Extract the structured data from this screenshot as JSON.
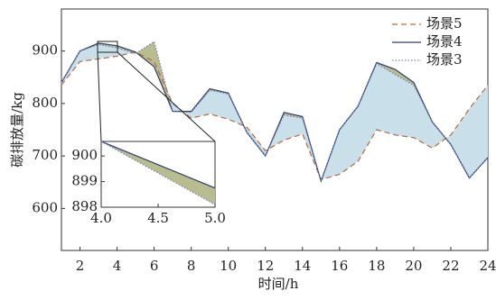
{
  "chart_data": [
    {
      "type": "line",
      "xlabel": "时间/h",
      "ylabel": "碳排放量/kg",
      "x": [
        1,
        2,
        3,
        4,
        5,
        6,
        7,
        8,
        9,
        10,
        11,
        12,
        13,
        14,
        15,
        16,
        17,
        18,
        19,
        20,
        21,
        22,
        23,
        24
      ],
      "xlim": [
        1,
        24
      ],
      "xticks": [
        2,
        4,
        6,
        8,
        10,
        12,
        14,
        16,
        18,
        20,
        22,
        24
      ],
      "ylim": [
        520,
        980
      ],
      "yticks": [
        600,
        700,
        800,
        900
      ],
      "legend": "upper right",
      "series": [
        {
          "name": "场景5",
          "color": "#b8683a",
          "style": "dashed",
          "values": [
            835,
            880,
            885,
            890,
            898,
            880,
            800,
            772,
            780,
            770,
            755,
            710,
            730,
            742,
            655,
            665,
            690,
            750,
            740,
            735,
            715,
            740,
            790,
            835
          ]
        },
        {
          "name": "场景4",
          "color": "#2b3d6b",
          "style": "solid",
          "values": [
            840,
            900,
            915,
            910,
            898,
            870,
            785,
            785,
            828,
            820,
            745,
            700,
            783,
            775,
            652,
            750,
            795,
            878,
            865,
            840,
            765,
            722,
            658,
            697
          ]
        },
        {
          "name": "场景3",
          "color": "#7a7fb8",
          "style": "dotted",
          "values": [
            840,
            900,
            912,
            906,
            895,
            918,
            785,
            783,
            825,
            818,
            745,
            700,
            778,
            772,
            652,
            750,
            795,
            876,
            855,
            835,
            765,
            722,
            658,
            697
          ]
        }
      ]
    },
    {
      "type": "line",
      "x": [
        4.0,
        5.0
      ],
      "xlim": [
        4.0,
        5.0
      ],
      "xticks": [
        {
          "value": 4.0,
          "label": "4.0"
        },
        {
          "value": 4.5,
          "label": "4.5"
        },
        {
          "value": 5.0,
          "label": "5.0"
        }
      ],
      "ylim": [
        898,
        900.57
      ],
      "yticks": [
        898,
        899,
        900
      ],
      "series": [
        {
          "color": "#2b3d6b",
          "style": "solid",
          "values": [
            900.57,
            898.75
          ]
        },
        {
          "color": "#7a7fb8",
          "style": "dotted",
          "values": [
            900.57,
            898.1
          ]
        }
      ]
    }
  ]
}
